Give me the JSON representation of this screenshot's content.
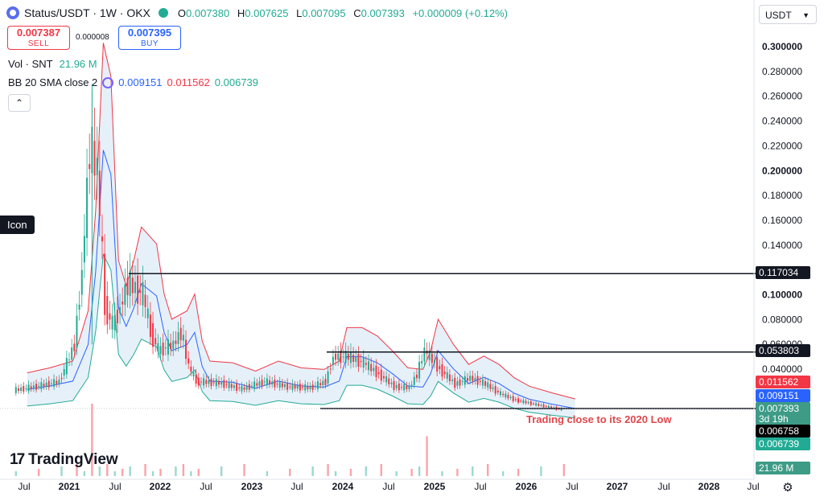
{
  "header": {
    "title": "Status/USDT · 1W · OKX",
    "o_label": "O",
    "o": "0.007380",
    "h_label": "H",
    "h": "0.007625",
    "l_label": "L",
    "l": "0.007095",
    "c_label": "C",
    "c": "0.007393",
    "change": "+0.000009 (+0.12%)"
  },
  "trade": {
    "sell_price": "0.007387",
    "sell_label": "SELL",
    "spread": "0.000008",
    "buy_price": "0.007395",
    "buy_label": "BUY"
  },
  "currency": {
    "label": "USDT"
  },
  "indicators": {
    "vol_label": "Vol · SNT",
    "vol_value": "21.96 M",
    "bb_label": "BB 20 SMA close 2",
    "bb_basis": "0.009151",
    "bb_upper": "0.011562",
    "bb_lower": "0.006739"
  },
  "tooltip": {
    "text": "Icon"
  },
  "brand": {
    "name": "TradingView"
  },
  "icons": {
    "settings": "gear-icon",
    "collapse": "chevron-up-icon",
    "logo": "tradingview-logo-icon",
    "bb": "refresh-icon"
  },
  "colors": {
    "up": "#22ab94",
    "down": "#f23645",
    "basis": "#2962ff",
    "upper": "#f23645",
    "lower": "#22ab94",
    "fill": "#dbe9f7"
  },
  "chart_data": {
    "type": "candlestick",
    "x_ticks": [
      "Jul",
      "2021",
      "Jul",
      "2022",
      "Jul",
      "2023",
      "Jul",
      "2024",
      "Jul",
      "2025",
      "Jul",
      "2026",
      "Jul",
      "2027",
      "Jul",
      "2028",
      "Jul"
    ],
    "y_ticks": [
      "0.300000",
      "0.280000",
      "0.260000",
      "0.240000",
      "0.220000",
      "0.200000",
      "0.180000",
      "0.160000",
      "0.140000",
      "0.120000",
      "0.100000",
      "0.080000",
      "0.060000",
      "0.040000",
      "0.020000"
    ],
    "ylim": [
      0.0,
      0.31
    ],
    "close_series": [
      [
        "2020-06",
        0.023
      ],
      [
        "2020-09",
        0.026
      ],
      [
        "2020-12",
        0.03
      ],
      [
        "2021-02",
        0.06
      ],
      [
        "2021-03",
        0.12
      ],
      [
        "2021-04",
        0.22
      ],
      [
        "2021-05",
        0.2
      ],
      [
        "2021-06",
        0.09
      ],
      [
        "2021-07",
        0.075
      ],
      [
        "2021-08",
        0.09
      ],
      [
        "2021-09",
        0.11
      ],
      [
        "2021-11",
        0.1
      ],
      [
        "2021-12",
        0.07
      ],
      [
        "2022-01",
        0.055
      ],
      [
        "2022-03",
        0.06
      ],
      [
        "2022-04",
        0.07
      ],
      [
        "2022-05",
        0.042
      ],
      [
        "2022-06",
        0.03
      ],
      [
        "2022-09",
        0.029
      ],
      [
        "2022-12",
        0.024
      ],
      [
        "2023-03",
        0.03
      ],
      [
        "2023-06",
        0.026
      ],
      [
        "2023-09",
        0.025
      ],
      [
        "2023-11",
        0.03
      ],
      [
        "2023-12",
        0.05
      ],
      [
        "2024-02",
        0.05
      ],
      [
        "2024-04",
        0.045
      ],
      [
        "2024-06",
        0.036
      ],
      [
        "2024-08",
        0.026
      ],
      [
        "2024-10",
        0.025
      ],
      [
        "2024-11",
        0.036
      ],
      [
        "2024-12",
        0.055
      ],
      [
        "2025-02",
        0.04
      ],
      [
        "2025-04",
        0.028
      ],
      [
        "2025-06",
        0.033
      ],
      [
        "2025-08",
        0.028
      ],
      [
        "2025-10",
        0.02
      ],
      [
        "2025-12",
        0.015
      ],
      [
        "2026-03",
        0.011
      ],
      [
        "2026-06",
        0.0074
      ]
    ],
    "high_max": {
      "date": "2021-04",
      "value": 0.27
    },
    "bollinger": {
      "period": 20,
      "basis": 0.009151,
      "upper": 0.011562,
      "lower": 0.006739
    },
    "levels": [
      {
        "value": 0.117034,
        "label": "0.117034"
      },
      {
        "value": 0.053803,
        "label": "0.053803"
      },
      {
        "value": 0.006758,
        "label": "0.006758"
      }
    ],
    "price_labels": {
      "upper": "0.011562",
      "basis": "0.009151",
      "close": "0.007393",
      "countdown": "3d 19h",
      "lower": "0.006739",
      "volume": "21.96 M"
    },
    "annotation": "Trading close to its 2020 Low",
    "volume_spikes": [
      [
        "2021-04",
        1.0
      ],
      [
        "2024-12",
        0.55
      ],
      [
        "2025-05",
        1.0
      ]
    ]
  }
}
